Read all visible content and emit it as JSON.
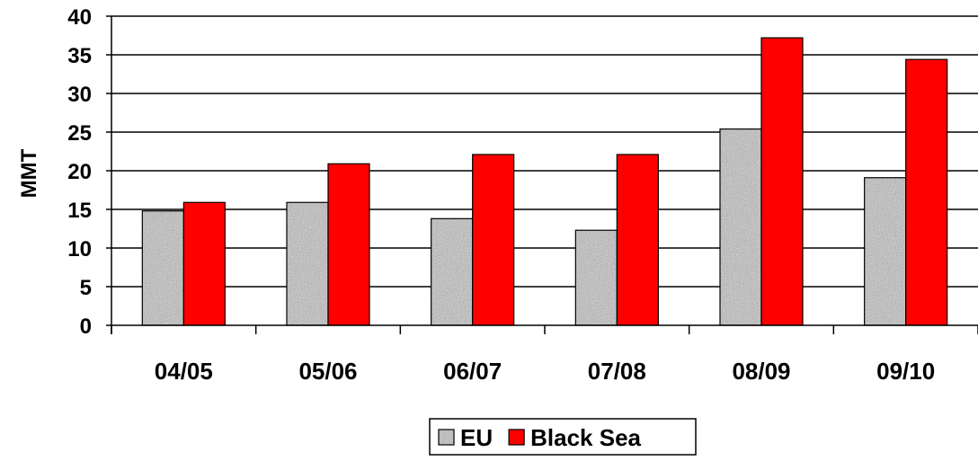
{
  "chart_data": {
    "type": "bar",
    "title": "",
    "xlabel": "",
    "ylabel": "MMT",
    "categories": [
      "04/05",
      "05/06",
      "06/07",
      "07/08",
      "08/09",
      "09/10"
    ],
    "series": [
      {
        "name": "EU",
        "values": [
          14.8,
          15.9,
          13.8,
          12.3,
          25.4,
          19.1
        ],
        "color": "#b5b5b5",
        "pattern": "granite"
      },
      {
        "name": "Black Sea",
        "values": [
          15.9,
          20.9,
          22.1,
          22.1,
          37.2,
          34.4
        ],
        "color": "#ff0000"
      }
    ],
    "ylim": [
      0,
      40
    ],
    "yticks": [
      0,
      5,
      10,
      15,
      20,
      25,
      30,
      35,
      40
    ],
    "grid": true,
    "legend_position": "bottom"
  }
}
